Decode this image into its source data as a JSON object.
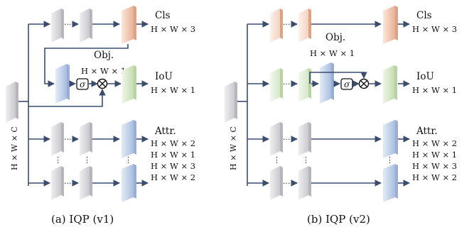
{
  "panels": [
    {
      "caption": "(a) IQP (v1)",
      "input_label": "H × W × C",
      "heads": [
        {
          "name": "Cls",
          "dim": "H × W × 3"
        },
        {
          "name": "Obj.",
          "dim": "H × W × 1"
        },
        {
          "name": "IoU",
          "dim": "H × W × 1"
        },
        {
          "name": "Attr.",
          "dims": [
            "H × W × 2",
            "H × W × 1",
            "H × W × 3",
            "H × W × 2"
          ]
        }
      ],
      "ops": {
        "sigmoid": "σ",
        "multiply": "⊗",
        "ellipsis": "···",
        "vdots": "⋮"
      }
    },
    {
      "caption": "(b) IQP (v2)",
      "input_label": "H × W × C",
      "heads": [
        {
          "name": "Cls",
          "dim": "H × W × 3"
        },
        {
          "name": "Obj.",
          "dim": "H × W × 1"
        },
        {
          "name": "IoU",
          "dim": "H × W × 1"
        },
        {
          "name": "Attr.",
          "dims": [
            "H × W × 2",
            "H × W × 1",
            "H × W × 3",
            "H × W × 2"
          ]
        }
      ],
      "ops": {
        "sigmoid": "σ",
        "multiply": "⊗",
        "ellipsis": "···",
        "vdots": "⋮"
      }
    }
  ],
  "colors": {
    "gray": "#c9c9ce",
    "gray_side": "#b5b5bb",
    "orange": "#e9b8a0",
    "orange_side": "#dda283",
    "blue": "#b3c5e2",
    "blue_side": "#98aed4",
    "green": "#cfe3be",
    "green_side": "#b7d4a0",
    "line": "#3b4d6e"
  }
}
